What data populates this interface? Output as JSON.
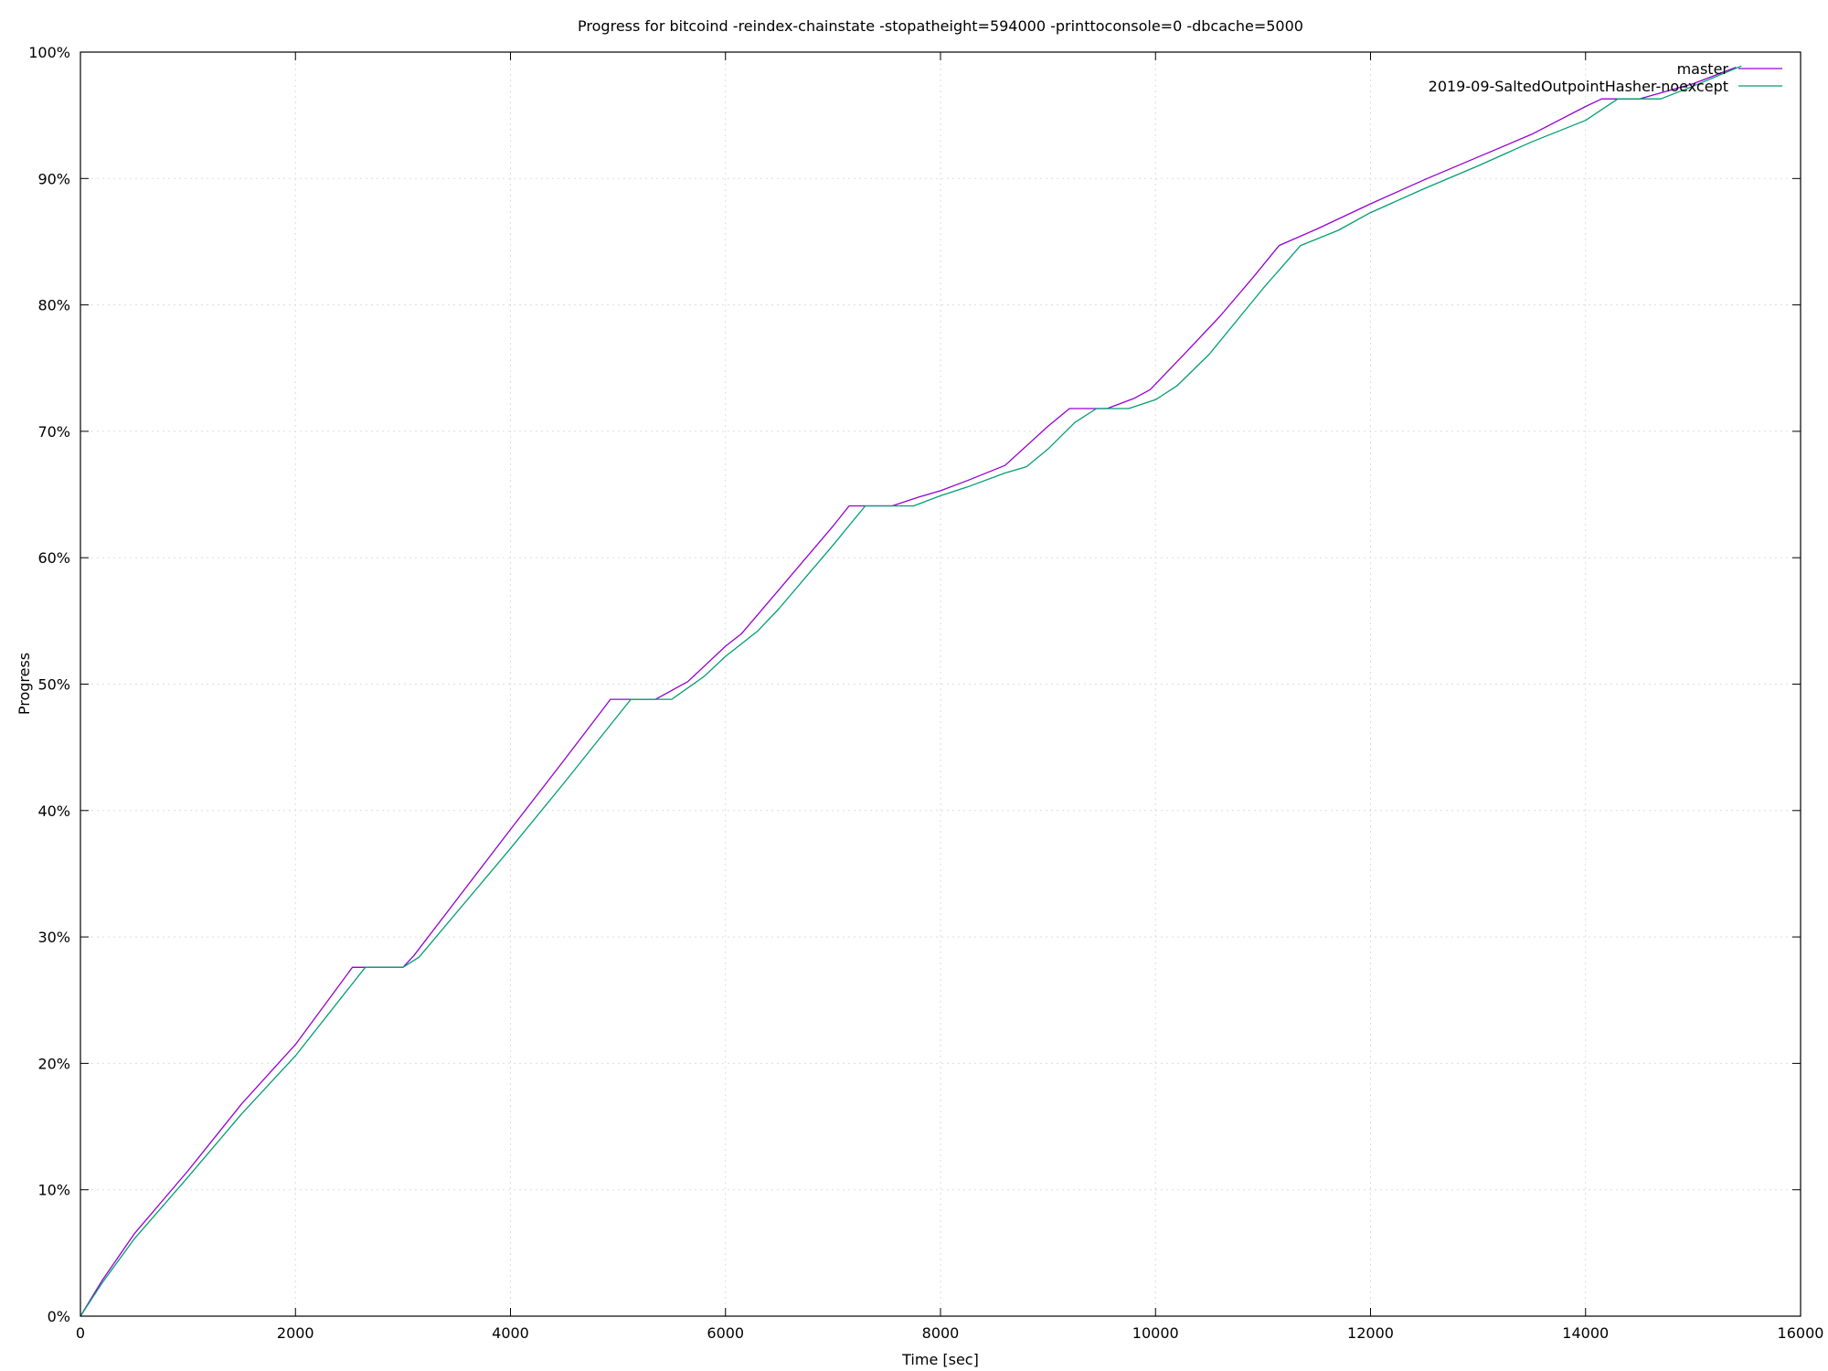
{
  "chart_data": {
    "type": "line",
    "title": "Progress for bitcoind -reindex-chainstate -stopatheight=594000 -printtoconsole=0 -dbcache=5000",
    "xlabel": "Time [sec]",
    "ylabel": "Progress",
    "xlim": [
      0,
      16000
    ],
    "ylim": [
      0,
      100
    ],
    "x_ticks": [
      0,
      2000,
      4000,
      6000,
      8000,
      10000,
      12000,
      14000,
      16000
    ],
    "y_ticks": [
      0,
      10,
      20,
      30,
      40,
      50,
      60,
      70,
      80,
      90,
      100
    ],
    "x_tick_labels": [
      "0",
      "2000",
      "4000",
      "6000",
      "8000",
      "10000",
      "12000",
      "14000",
      "16000"
    ],
    "y_tick_labels": [
      "0%",
      "10%",
      "20%",
      "30%",
      "40%",
      "50%",
      "60%",
      "70%",
      "80%",
      "90%",
      "100%"
    ],
    "grid": true,
    "legend_position": "top-right",
    "series": [
      {
        "name": "master",
        "color": "#9400d3",
        "points": [
          [
            0,
            0
          ],
          [
            200,
            2.8
          ],
          [
            500,
            6.5
          ],
          [
            1000,
            11.5
          ],
          [
            1500,
            16.8
          ],
          [
            2000,
            21.5
          ],
          [
            2530,
            27.6
          ],
          [
            3000,
            27.6
          ],
          [
            3100,
            28.5
          ],
          [
            4000,
            38.5
          ],
          [
            4500,
            44.0
          ],
          [
            4930,
            48.8
          ],
          [
            5350,
            48.8
          ],
          [
            5650,
            50.2
          ],
          [
            6000,
            53.0
          ],
          [
            6150,
            54.0
          ],
          [
            6500,
            57.5
          ],
          [
            7000,
            62.5
          ],
          [
            7150,
            64.1
          ],
          [
            7550,
            64.1
          ],
          [
            7800,
            64.8
          ],
          [
            8000,
            65.3
          ],
          [
            8250,
            66.1
          ],
          [
            8600,
            67.3
          ],
          [
            9000,
            70.4
          ],
          [
            9200,
            71.8
          ],
          [
            9550,
            71.8
          ],
          [
            9800,
            72.6
          ],
          [
            9950,
            73.3
          ],
          [
            10300,
            76.4
          ],
          [
            10600,
            79.1
          ],
          [
            10900,
            82.1
          ],
          [
            11150,
            84.7
          ],
          [
            11500,
            86.0
          ],
          [
            12000,
            88.0
          ],
          [
            12500,
            89.9
          ],
          [
            13000,
            91.7
          ],
          [
            13500,
            93.5
          ],
          [
            14000,
            95.7
          ],
          [
            14150,
            96.3
          ],
          [
            14500,
            96.3
          ],
          [
            15000,
            97.5
          ],
          [
            15400,
            98.8
          ]
        ]
      },
      {
        "name": "2019-09-SaltedOutpointHasher-noexcept",
        "color": "#009e73",
        "points": [
          [
            0,
            0
          ],
          [
            200,
            2.6
          ],
          [
            500,
            6.1
          ],
          [
            1000,
            11.0
          ],
          [
            1500,
            16.0
          ],
          [
            2000,
            20.6
          ],
          [
            2650,
            27.6
          ],
          [
            3000,
            27.6
          ],
          [
            3150,
            28.4
          ],
          [
            4000,
            37.0
          ],
          [
            4500,
            42.2
          ],
          [
            5120,
            48.8
          ],
          [
            5500,
            48.8
          ],
          [
            5800,
            50.6
          ],
          [
            6000,
            52.2
          ],
          [
            6300,
            54.2
          ],
          [
            6500,
            56.0
          ],
          [
            7000,
            61.0
          ],
          [
            7300,
            64.1
          ],
          [
            7750,
            64.1
          ],
          [
            8000,
            64.9
          ],
          [
            8250,
            65.6
          ],
          [
            8600,
            66.7
          ],
          [
            8800,
            67.2
          ],
          [
            9000,
            68.6
          ],
          [
            9250,
            70.7
          ],
          [
            9450,
            71.8
          ],
          [
            9750,
            71.8
          ],
          [
            10000,
            72.5
          ],
          [
            10200,
            73.6
          ],
          [
            10500,
            76.1
          ],
          [
            11000,
            81.3
          ],
          [
            11350,
            84.7
          ],
          [
            11700,
            85.9
          ],
          [
            12000,
            87.3
          ],
          [
            12500,
            89.2
          ],
          [
            13000,
            91.0
          ],
          [
            13500,
            92.9
          ],
          [
            14000,
            94.6
          ],
          [
            14300,
            96.3
          ],
          [
            14700,
            96.3
          ],
          [
            15000,
            97.3
          ],
          [
            15450,
            98.9
          ]
        ]
      }
    ]
  }
}
